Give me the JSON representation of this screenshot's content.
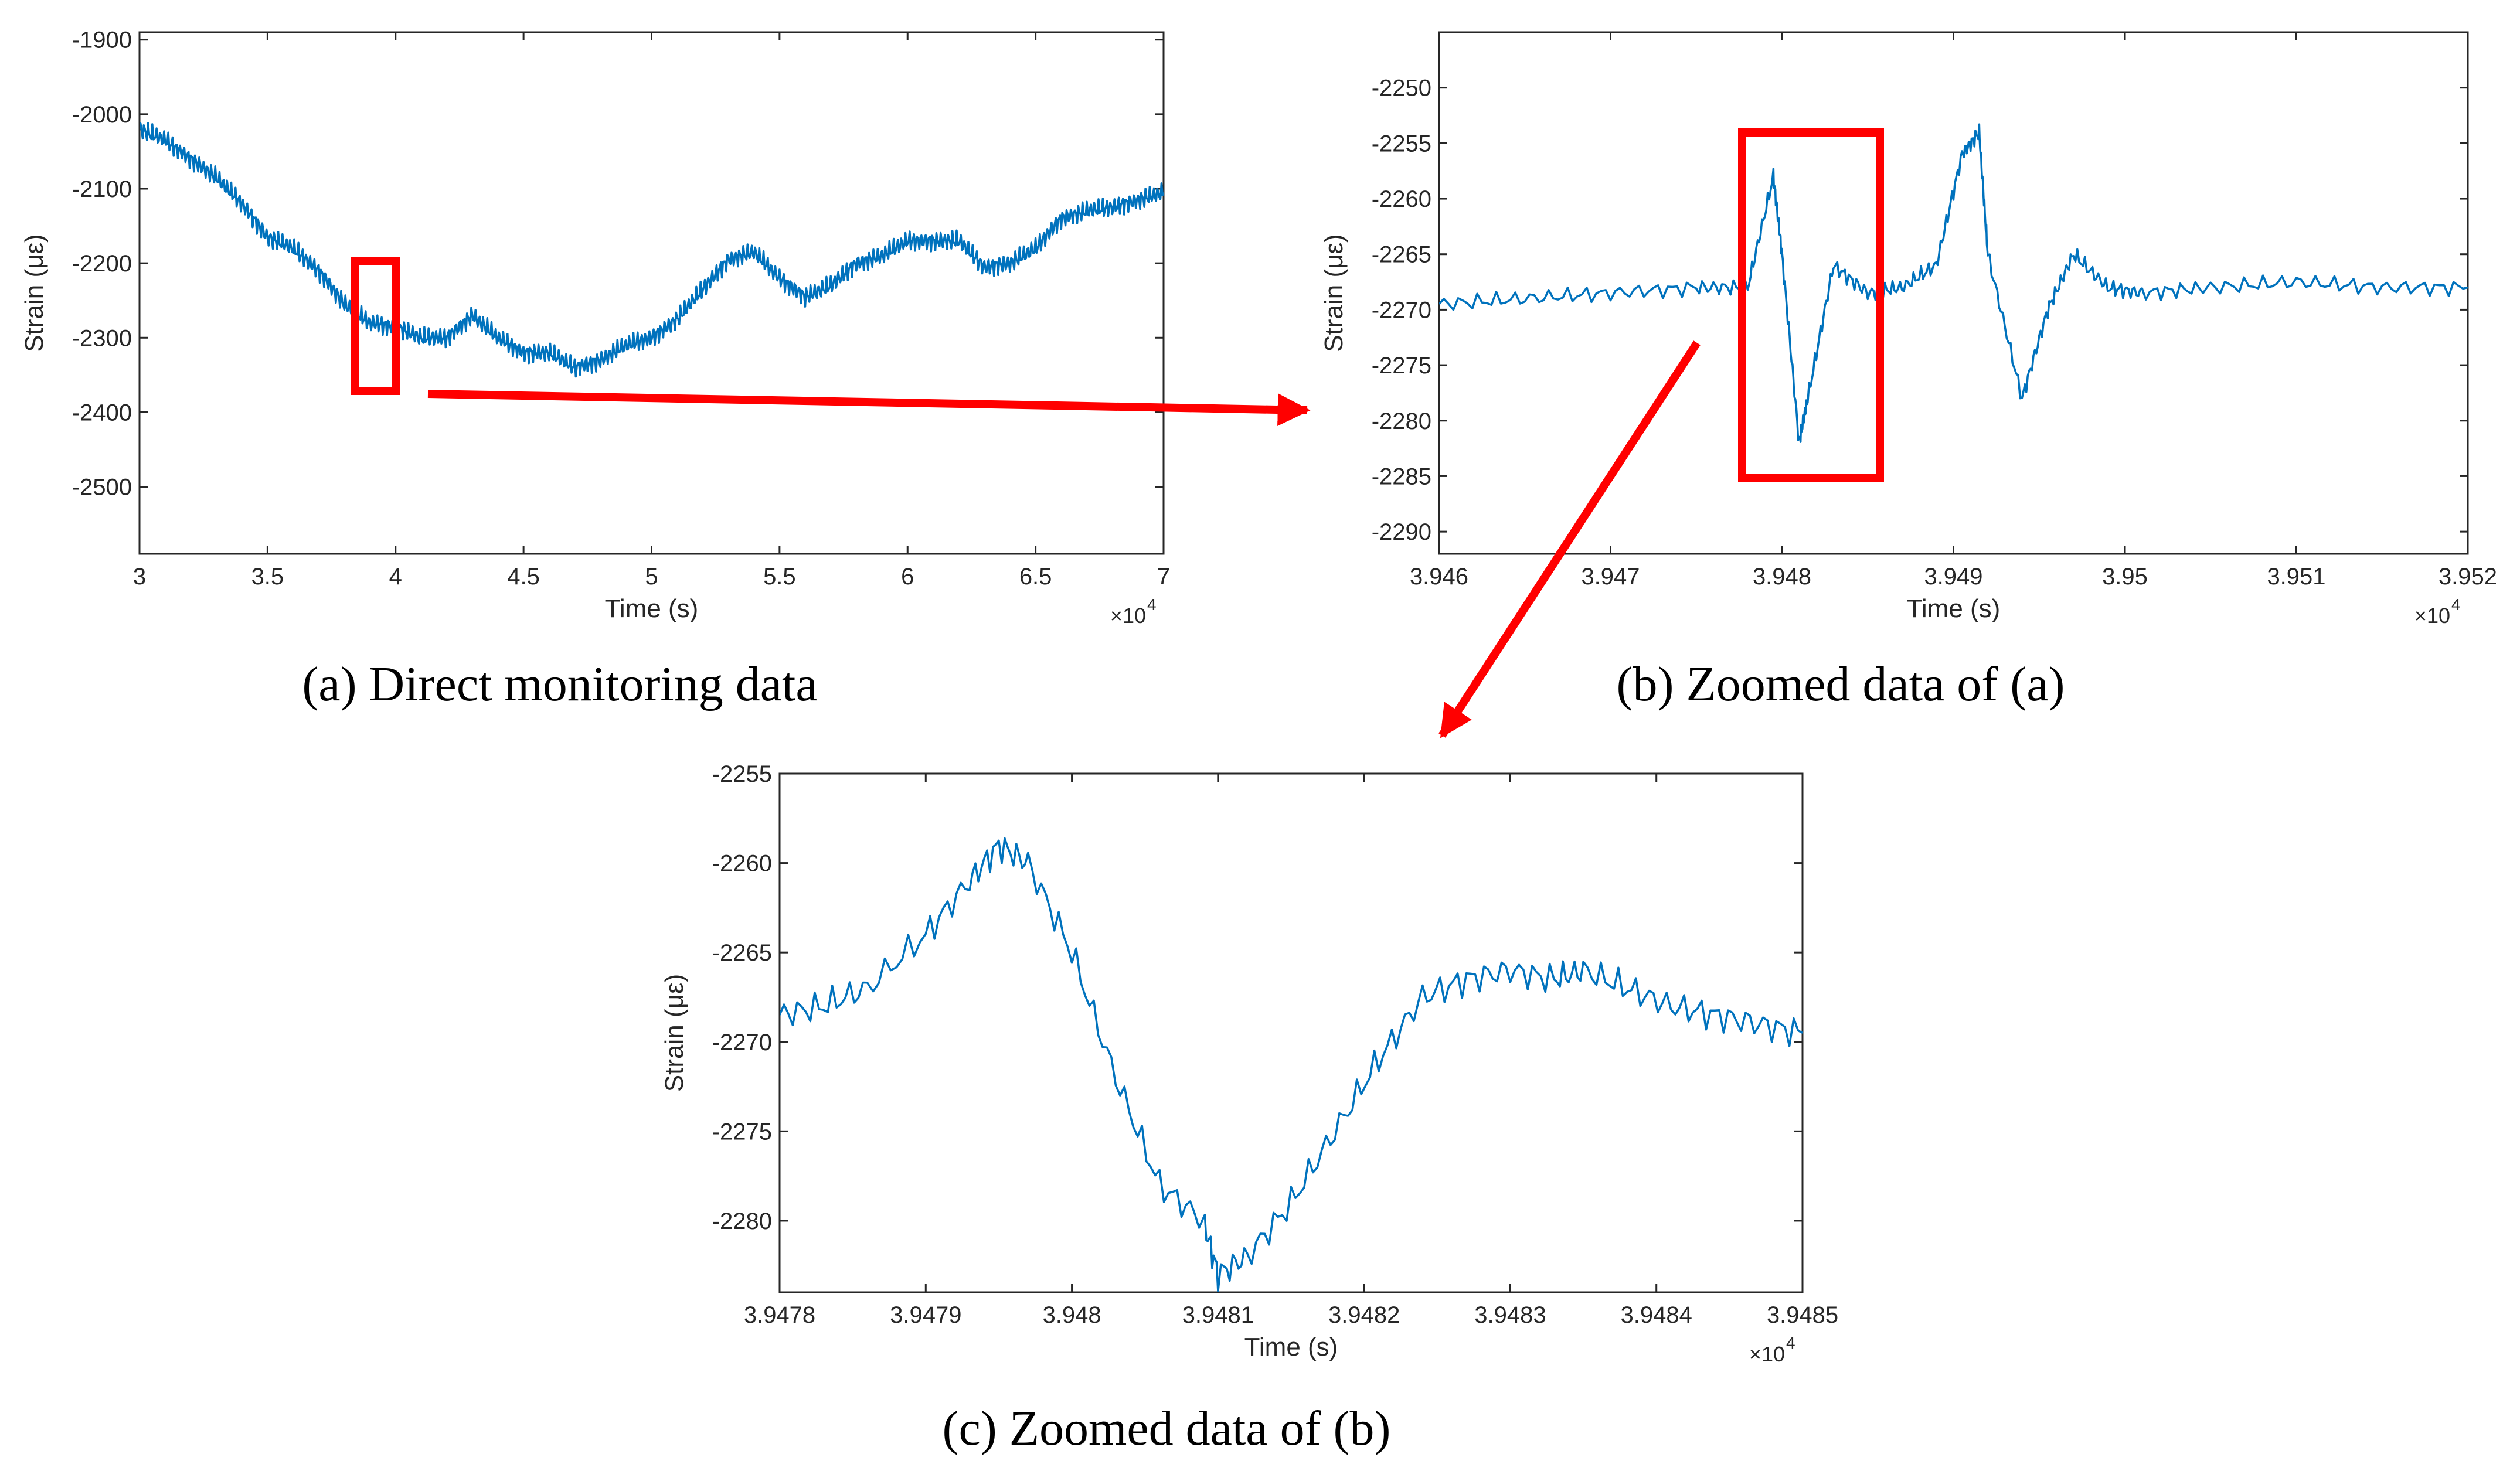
{
  "colors": {
    "series": "#0072BD",
    "highlight": "#FF0000",
    "axis": "#262626"
  },
  "chart_data": [
    {
      "id": "a",
      "type": "line",
      "caption": "(a)  Direct monitoring data",
      "xlabel": "Time (s)",
      "ylabel": "Strain (με)",
      "x_exponent_label": "×10",
      "x_exponent": "4",
      "xlim": [
        3,
        7
      ],
      "ylim": [
        -2590,
        -1890
      ],
      "xticks": [
        "3",
        "3.5",
        "4",
        "4.5",
        "5",
        "5.5",
        "6",
        "6.5",
        "7"
      ],
      "yticks": [
        "-1900",
        "-2000",
        "-2100",
        "-2200",
        "-2300",
        "-2400",
        "-2500"
      ],
      "series": [
        {
          "name": "Strain",
          "x": [
            3.0,
            3.1,
            3.2,
            3.3,
            3.4,
            3.5,
            3.6,
            3.7,
            3.8,
            3.9,
            4.0,
            4.1,
            4.2,
            4.3,
            4.4,
            4.5,
            4.6,
            4.7,
            4.8,
            4.9,
            5.0,
            5.1,
            5.2,
            5.3,
            5.4,
            5.5,
            5.6,
            5.7,
            5.8,
            5.9,
            6.0,
            6.1,
            6.2,
            6.3,
            6.4,
            6.5,
            6.6,
            6.7,
            6.8,
            6.9,
            7.0
          ],
          "y": [
            -2020,
            -2035,
            -2060,
            -2085,
            -2120,
            -2165,
            -2180,
            -2210,
            -2255,
            -2280,
            -2285,
            -2300,
            -2300,
            -2270,
            -2300,
            -2320,
            -2320,
            -2340,
            -2330,
            -2310,
            -2300,
            -2275,
            -2235,
            -2195,
            -2185,
            -2220,
            -2245,
            -2230,
            -2200,
            -2190,
            -2170,
            -2170,
            -2170,
            -2205,
            -2200,
            -2180,
            -2140,
            -2130,
            -2125,
            -2115,
            -2105
          ]
        }
      ]
    },
    {
      "id": "b",
      "type": "line",
      "caption": "(b) Zoomed data of (a)",
      "xlabel": "Time (s)",
      "ylabel": "Strain (με)",
      "x_exponent_label": "×10",
      "x_exponent": "4",
      "xlim": [
        3.946,
        3.952
      ],
      "ylim": [
        -2292,
        -2245
      ],
      "xticks": [
        "3.946",
        "3.947",
        "3.948",
        "3.949",
        "3.95",
        "3.951",
        "3.952"
      ],
      "yticks": [
        "-2250",
        "-2255",
        "-2260",
        "-2265",
        "-2270",
        "-2275",
        "-2280",
        "-2285",
        "-2290"
      ],
      "series": [
        {
          "name": "Strain",
          "x": [
            3.946,
            3.9465,
            3.947,
            3.9475,
            3.9478,
            3.94795,
            3.948,
            3.9481,
            3.94815,
            3.9483,
            3.9485,
            3.9487,
            3.9489,
            3.94905,
            3.94915,
            3.9492,
            3.9494,
            3.94955,
            3.9497,
            3.9499,
            3.9501,
            3.9505,
            3.951,
            3.9515,
            3.952
          ],
          "y": [
            -2269.5,
            -2269,
            -2268.5,
            -2268,
            -2268,
            -2258,
            -2265,
            -2282,
            -2278,
            -2266,
            -2268.5,
            -2268,
            -2266,
            -2256,
            -2254,
            -2265,
            -2278,
            -2270,
            -2265,
            -2268,
            -2268.5,
            -2268,
            -2267.5,
            -2268,
            -2268
          ]
        }
      ]
    },
    {
      "id": "c",
      "type": "line",
      "caption": "(c) Zoomed data of (b)",
      "xlabel": "Time (s)",
      "ylabel": "Strain (με)",
      "x_exponent_label": "×10",
      "x_exponent": "4",
      "xlim": [
        3.9478,
        3.9485
      ],
      "ylim": [
        -2284,
        -2255
      ],
      "xticks": [
        "3.9478",
        "3.9479",
        "3.948",
        "3.9481",
        "3.9482",
        "3.9483",
        "3.9484",
        "3.9485"
      ],
      "yticks": [
        "-2255",
        "-2260",
        "-2265",
        "-2270",
        "-2275",
        "-2280"
      ],
      "series": [
        {
          "name": "Strain",
          "x": [
            3.9478,
            3.94783,
            3.94786,
            3.9479,
            3.94793,
            3.94795,
            3.94797,
            3.948,
            3.94803,
            3.94806,
            3.94809,
            3.9481,
            3.94812,
            3.94815,
            3.94818,
            3.94821,
            3.94824,
            3.94827,
            3.9483,
            3.94833,
            3.94835,
            3.94838,
            3.94841,
            3.94844,
            3.94847,
            3.9485
          ],
          "y": [
            -2268.5,
            -2268,
            -2267,
            -2264,
            -2261,
            -2259,
            -2260,
            -2265,
            -2272,
            -2278,
            -2280,
            -2283,
            -2282,
            -2279,
            -2275,
            -2271,
            -2267.5,
            -2266.5,
            -2266,
            -2266.5,
            -2266,
            -2267,
            -2268,
            -2268.5,
            -2269,
            -2269.5
          ]
        }
      ]
    }
  ]
}
